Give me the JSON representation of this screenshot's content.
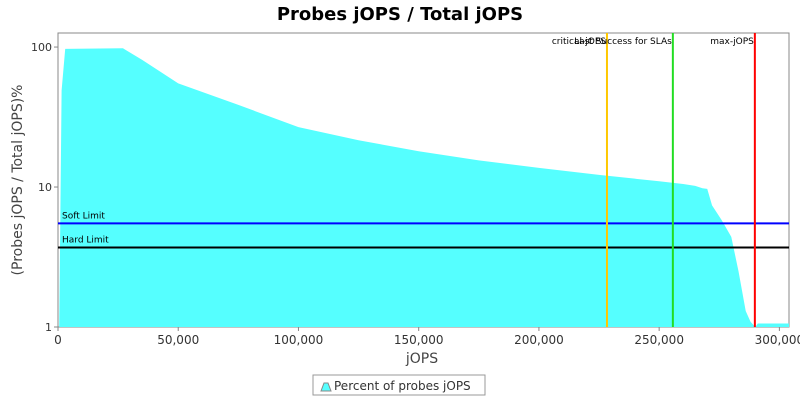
{
  "chart_data": {
    "type": "area",
    "title": "Probes jOPS / Total jOPS",
    "x_label": "jOPS",
    "y_label": "(Probes jOPS / Total jOPS)%",
    "log_y": true,
    "xlim": [
      0,
      304000
    ],
    "ylim": [
      1,
      126
    ],
    "xticks": [
      0,
      {
        "value": 50000,
        "label": "50,000"
      },
      {
        "value": 100000,
        "label": "100,000"
      },
      {
        "value": 150000,
        "label": "150,000"
      },
      {
        "value": 200000,
        "label": "200,000"
      },
      {
        "value": 250000,
        "label": "250,000"
      },
      {
        "value": 300000,
        "label": "300,000"
      }
    ],
    "yticks": [
      1,
      10,
      100
    ],
    "series": [
      {
        "name": "Percent of probes jOPS",
        "color": "#55ffff",
        "x": [
          500,
          1500,
          3000,
          27000,
          35000,
          50000,
          75000,
          100000,
          125000,
          150000,
          175000,
          200000,
          225000,
          250000,
          260000,
          265000,
          268000,
          270000,
          272000,
          276000,
          280000,
          283000,
          286000,
          288000,
          290000,
          291000,
          304000
        ],
        "values": [
          1,
          49,
          97,
          98,
          81,
          55,
          38.6,
          26.8,
          21.6,
          18,
          15.5,
          13.7,
          12.2,
          11,
          10.5,
          10.2,
          9.8,
          9.7,
          7.4,
          5.8,
          4.4,
          2.5,
          1.3,
          1.09,
          1,
          1.06,
          1.06
        ]
      }
    ],
    "markers": [
      {
        "label": "critical-jOPS",
        "value": 228300,
        "color": "#ffc800"
      },
      {
        "label": "Last Success for SLAs",
        "value": 255700,
        "color": "#22dd22"
      },
      {
        "label": "max-jOPS",
        "value": 289800,
        "color": "#ff0000"
      }
    ],
    "limits": [
      {
        "label": "Soft Limit",
        "value": 5.5,
        "color": "#0000ff"
      },
      {
        "label": "Hard Limit",
        "value": 3.7,
        "color": "#000000"
      }
    ]
  }
}
